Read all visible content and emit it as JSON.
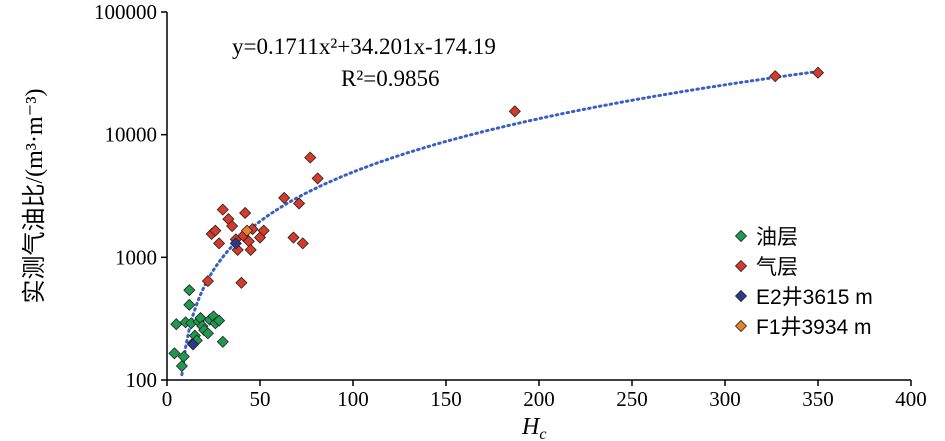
{
  "chart_data": {
    "type": "scatter",
    "title": "",
    "xlabel_main": "H",
    "xlabel_sub": "c",
    "ylabel": "实测气油比/(m³·m⁻³)",
    "xlim": [
      0,
      400
    ],
    "ylim": [
      100,
      100000
    ],
    "y_scale": "log",
    "x_ticks": [
      "0",
      "50",
      "100",
      "150",
      "200",
      "250",
      "300",
      "350",
      "400"
    ],
    "y_ticks": [
      "100",
      "1000",
      "10000",
      "100000"
    ],
    "grid": false,
    "legend_position": "right",
    "annotation": {
      "equation": "y=0.1711x²+34.201x-174.19",
      "r2": "R²=0.9856"
    },
    "trendline": {
      "a": 0.1711,
      "b": 34.201,
      "c": -174.19,
      "style": "dotted",
      "color": "#3a5fc4"
    },
    "series": [
      {
        "name": "油层",
        "color": "#1e9a50",
        "points": [
          [
            4,
            165
          ],
          [
            5,
            285
          ],
          [
            8,
            130
          ],
          [
            9,
            155
          ],
          [
            10,
            295
          ],
          [
            12,
            540
          ],
          [
            12,
            410
          ],
          [
            13,
            290
          ],
          [
            14,
            200
          ],
          [
            15,
            230
          ],
          [
            16,
            210
          ],
          [
            17,
            300
          ],
          [
            18,
            320
          ],
          [
            19,
            275
          ],
          [
            20,
            255
          ],
          [
            22,
            240
          ],
          [
            23,
            310
          ],
          [
            25,
            330
          ],
          [
            26,
            290
          ],
          [
            28,
            305
          ],
          [
            30,
            205
          ]
        ]
      },
      {
        "name": "气层",
        "color": "#d63a2a",
        "points": [
          [
            22,
            640
          ],
          [
            24,
            1550
          ],
          [
            26,
            1650
          ],
          [
            28,
            1300
          ],
          [
            30,
            2450
          ],
          [
            33,
            2050
          ],
          [
            35,
            1800
          ],
          [
            37,
            1400
          ],
          [
            38,
            1150
          ],
          [
            40,
            620
          ],
          [
            41,
            1500
          ],
          [
            42,
            2300
          ],
          [
            44,
            1350
          ],
          [
            45,
            1150
          ],
          [
            46,
            1700
          ],
          [
            50,
            1450
          ],
          [
            52,
            1650
          ],
          [
            63,
            3050
          ],
          [
            68,
            1450
          ],
          [
            71,
            2750
          ],
          [
            73,
            1300
          ],
          [
            77,
            6500
          ],
          [
            81,
            4400
          ],
          [
            187,
            15500
          ],
          [
            327,
            30000
          ],
          [
            350,
            32000
          ]
        ]
      },
      {
        "name": "E2井3615 m",
        "color": "#2b3a8a",
        "points": [
          [
            14,
            195
          ],
          [
            37,
            1300
          ]
        ]
      },
      {
        "name": "F1井3934 m",
        "color": "#e8812a",
        "points": [
          [
            43,
            1650
          ]
        ]
      }
    ]
  }
}
